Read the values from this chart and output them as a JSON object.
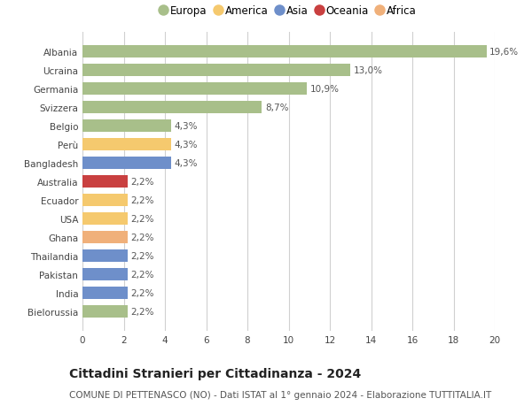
{
  "countries": [
    "Albania",
    "Ucraina",
    "Germania",
    "Svizzera",
    "Belgio",
    "Perù",
    "Bangladesh",
    "Australia",
    "Ecuador",
    "USA",
    "Ghana",
    "Thailandia",
    "Pakistan",
    "India",
    "Bielorussia"
  ],
  "values": [
    19.6,
    13.0,
    10.9,
    8.7,
    4.3,
    4.3,
    4.3,
    2.2,
    2.2,
    2.2,
    2.2,
    2.2,
    2.2,
    2.2,
    2.2
  ],
  "labels": [
    "19,6%",
    "13,0%",
    "10,9%",
    "8,7%",
    "4,3%",
    "4,3%",
    "4,3%",
    "2,2%",
    "2,2%",
    "2,2%",
    "2,2%",
    "2,2%",
    "2,2%",
    "2,2%",
    "2,2%"
  ],
  "colors": [
    "#a8bf8a",
    "#a8bf8a",
    "#a8bf8a",
    "#a8bf8a",
    "#a8bf8a",
    "#f5c96e",
    "#6e8fca",
    "#c94040",
    "#f5c96e",
    "#f5c96e",
    "#f0b07a",
    "#6e8fca",
    "#6e8fca",
    "#6e8fca",
    "#a8bf8a"
  ],
  "continent_colors": {
    "Europa": "#a8bf8a",
    "America": "#f5c96e",
    "Asia": "#6e8fca",
    "Oceania": "#c94040",
    "Africa": "#f0b07a"
  },
  "legend_order": [
    "Europa",
    "America",
    "Asia",
    "Oceania",
    "Africa"
  ],
  "xlim": [
    0,
    20
  ],
  "xticks": [
    0,
    2,
    4,
    6,
    8,
    10,
    12,
    14,
    16,
    18,
    20
  ],
  "title": "Cittadini Stranieri per Cittadinanza - 2024",
  "subtitle": "COMUNE DI PETTENASCO (NO) - Dati ISTAT al 1° gennaio 2024 - Elaborazione TUTTITALIA.IT",
  "bg_color": "#ffffff",
  "grid_color": "#d0d0d0",
  "bar_height": 0.65,
  "label_fontsize": 7.5,
  "tick_fontsize": 7.5,
  "title_fontsize": 10,
  "subtitle_fontsize": 7.5,
  "legend_fontsize": 8.5
}
